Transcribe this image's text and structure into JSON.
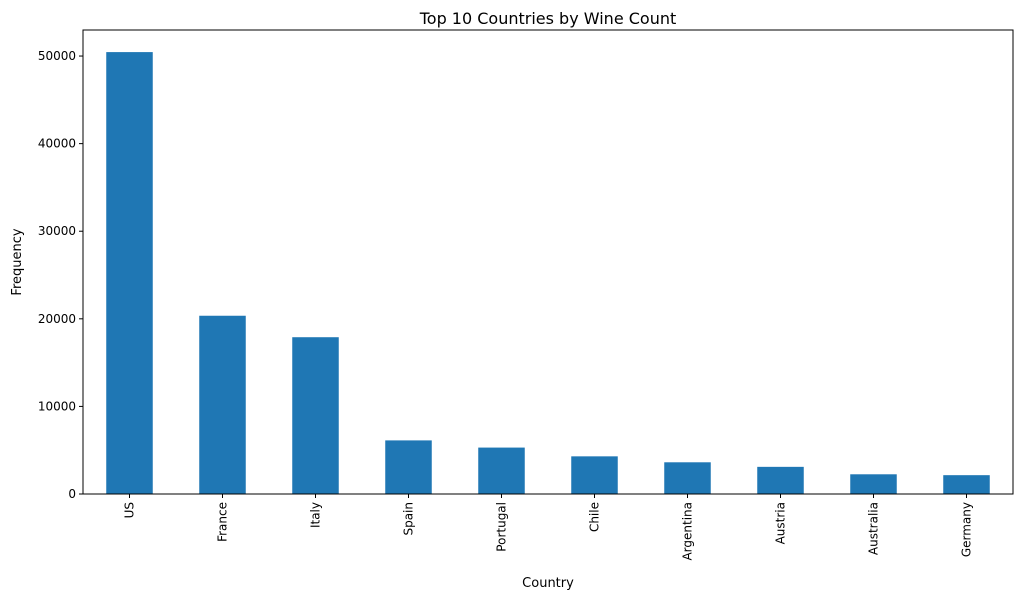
{
  "chart_data": {
    "type": "bar",
    "title": "Top 10 Countries by Wine Count",
    "xlabel": "Country",
    "ylabel": "Frequency",
    "categories": [
      "US",
      "France",
      "Italy",
      "Spain",
      "Portugal",
      "Chile",
      "Argentina",
      "Austria",
      "Australia",
      "Germany"
    ],
    "values": [
      50450,
      20350,
      17900,
      6120,
      5300,
      4300,
      3620,
      3100,
      2250,
      2150
    ],
    "ylim": [
      0,
      52973
    ],
    "yticks": [
      0,
      10000,
      20000,
      30000,
      40000,
      50000
    ],
    "grid": false,
    "bar_color": "#1f77b4"
  }
}
